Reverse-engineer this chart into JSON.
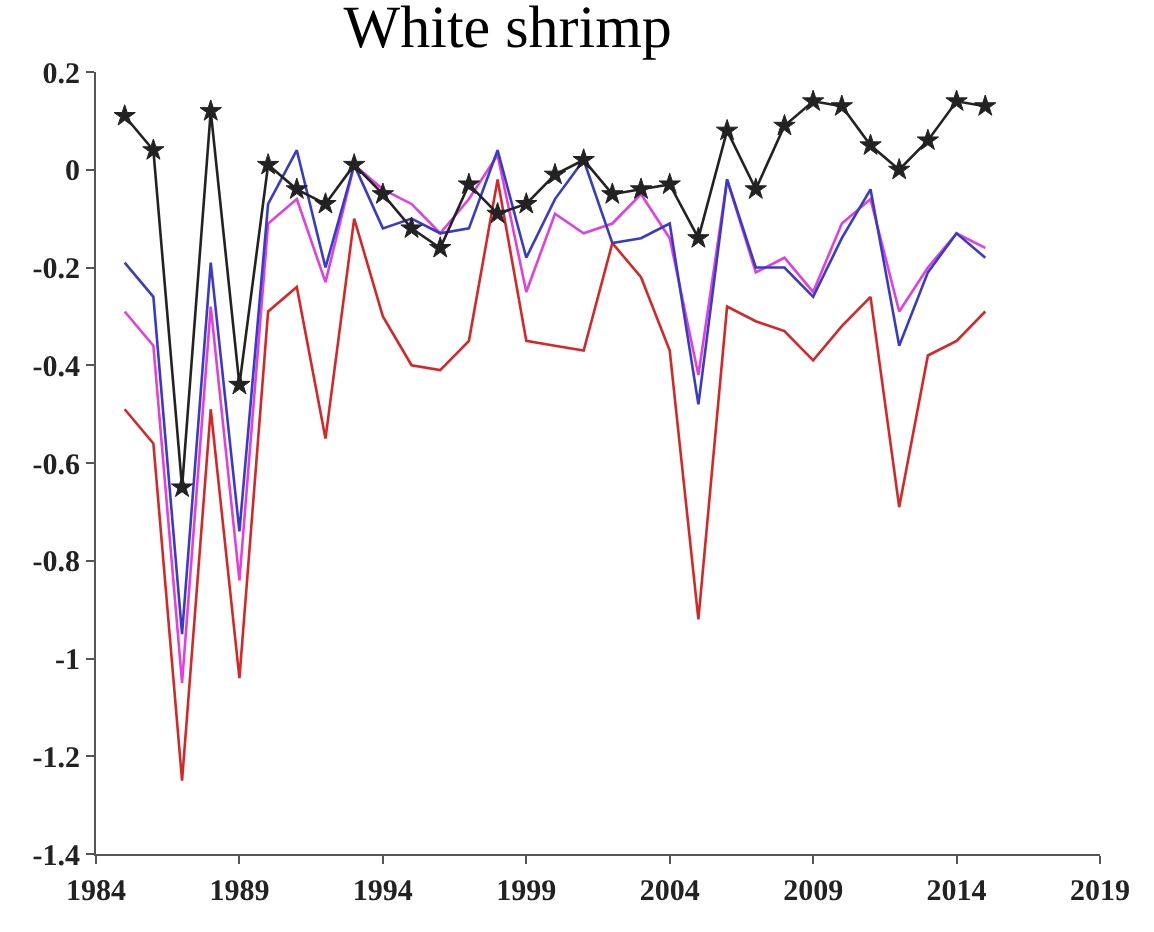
{
  "chart_data": {
    "type": "line",
    "title": "White shrimp",
    "x": [
      1985,
      1986,
      1987,
      1988,
      1989,
      1990,
      1991,
      1992,
      1993,
      1994,
      1995,
      1996,
      1997,
      1998,
      1999,
      2000,
      2001,
      2002,
      2003,
      2004,
      2005,
      2006,
      2007,
      2008,
      2009,
      2010,
      2011,
      2012,
      2013,
      2014,
      2015
    ],
    "series": [
      {
        "color": "#d62728",
        "marker": "none",
        "values": [
          -0.49,
          -0.56,
          -1.25,
          -0.49,
          -1.04,
          -0.29,
          -0.24,
          -0.55,
          -0.1,
          -0.3,
          -0.4,
          -0.41,
          -0.35,
          -0.02,
          -0.35,
          -0.36,
          -0.37,
          -0.15,
          -0.22,
          -0.37,
          -0.92,
          -0.28,
          -0.31,
          -0.33,
          -0.39,
          -0.32,
          -0.26,
          -0.69,
          -0.38,
          -0.35,
          -0.29
        ]
      },
      {
        "color": "#e040e0",
        "marker": "none",
        "values": [
          -0.29,
          -0.36,
          -1.05,
          -0.28,
          -0.84,
          -0.11,
          -0.06,
          -0.23,
          0.01,
          -0.04,
          -0.07,
          -0.13,
          -0.06,
          0.03,
          -0.25,
          -0.09,
          -0.13,
          -0.11,
          -0.05,
          -0.14,
          -0.42,
          -0.02,
          -0.21,
          -0.18,
          -0.25,
          -0.11,
          -0.06,
          -0.29,
          -0.2,
          -0.13,
          -0.16
        ]
      },
      {
        "color": "#3a3ac8",
        "marker": "none",
        "values": [
          -0.19,
          -0.26,
          -0.95,
          -0.19,
          -0.74,
          -0.07,
          0.04,
          -0.2,
          0.01,
          -0.12,
          -0.1,
          -0.13,
          -0.12,
          0.04,
          -0.18,
          -0.06,
          0.02,
          -0.15,
          -0.14,
          -0.11,
          -0.48,
          -0.02,
          -0.2,
          -0.2,
          -0.26,
          -0.14,
          -0.04,
          -0.36,
          -0.21,
          -0.13,
          -0.18
        ]
      },
      {
        "color": "#222222",
        "marker": "star",
        "values": [
          0.11,
          0.04,
          -0.65,
          0.12,
          -0.44,
          0.01,
          -0.04,
          -0.07,
          0.01,
          -0.05,
          -0.12,
          -0.16,
          -0.03,
          -0.09,
          -0.07,
          -0.01,
          0.02,
          -0.05,
          -0.04,
          -0.03,
          -0.14,
          0.08,
          -0.04,
          0.09,
          0.14,
          0.13,
          0.05,
          0.0,
          0.06,
          0.14,
          0.13
        ]
      }
    ],
    "xlim": [
      1984,
      2019
    ],
    "xticks": [
      1984,
      1989,
      1994,
      1999,
      2004,
      2009,
      2014,
      2019
    ],
    "ylim": [
      -1.4,
      0.2
    ],
    "yticks": [
      {
        "value": -1.4,
        "label": "-1.4"
      },
      {
        "value": -1.2,
        "label": "-1.2"
      },
      {
        "value": -1,
        "label": "-1"
      },
      {
        "value": -0.8,
        "label": "-0.8"
      },
      {
        "value": -0.6,
        "label": "-0.6"
      },
      {
        "value": -0.4,
        "label": "-0.4"
      },
      {
        "value": -0.2,
        "label": "-0.2"
      },
      {
        "value": 0,
        "label": "0"
      },
      {
        "value": 0.2,
        "label": "0.2"
      }
    ],
    "grid": false,
    "line_style": "solid"
  }
}
